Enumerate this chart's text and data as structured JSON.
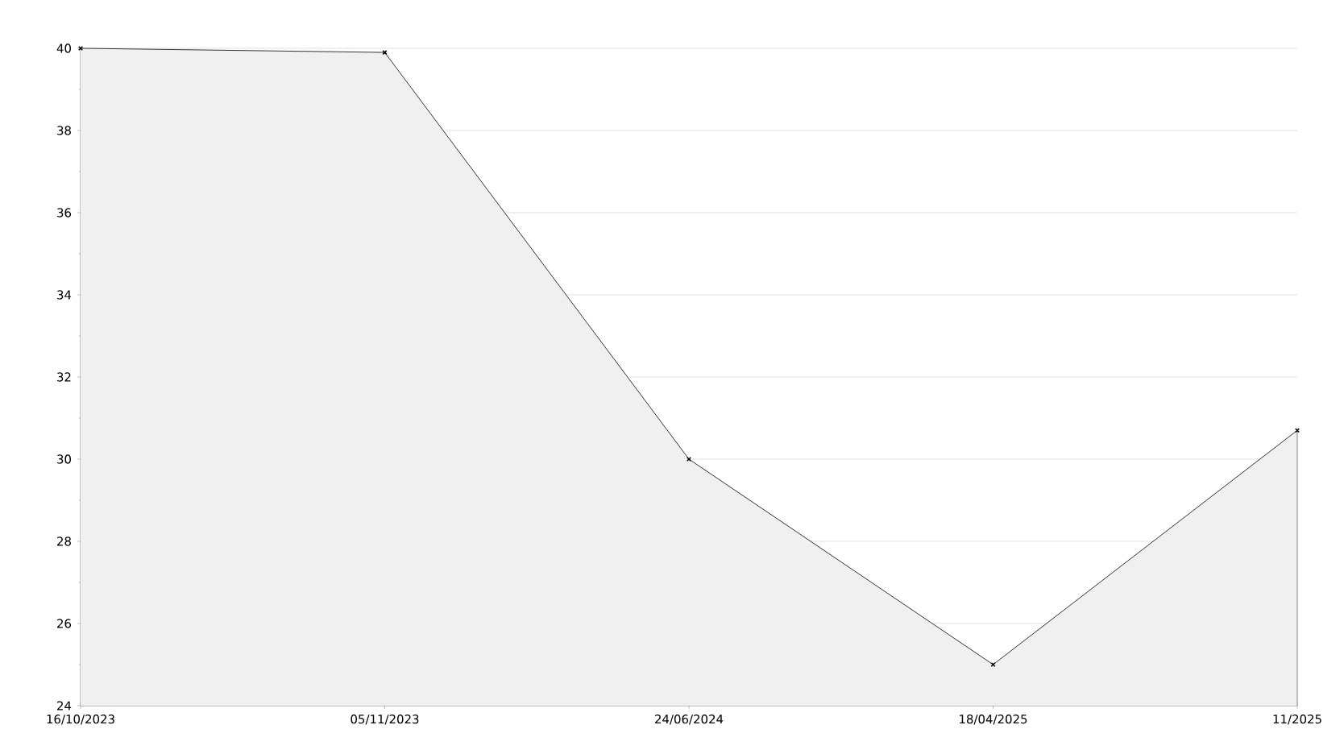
{
  "chart_data": {
    "type": "area",
    "categories": [
      "16/10/2023",
      "05/11/2023",
      "24/06/2024",
      "18/04/2025",
      "11/2025"
    ],
    "values": [
      40,
      39.9,
      30,
      25,
      30.7
    ],
    "color": "#f0f0f0",
    "ylim": [
      24,
      40
    ],
    "yticks": [
      24,
      26,
      28,
      30,
      32,
      34,
      36,
      38,
      40
    ],
    "grid": "y",
    "marker": "cross",
    "line_style": "solid"
  }
}
